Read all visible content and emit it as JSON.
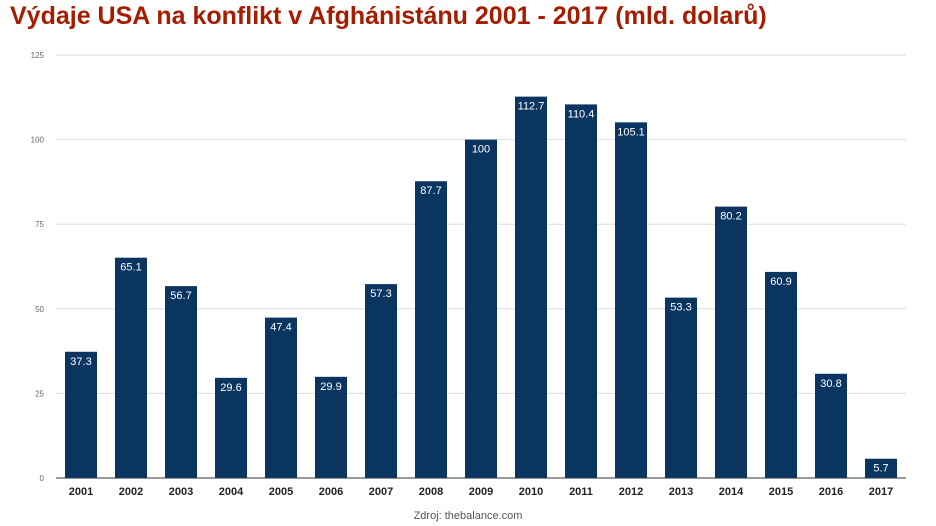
{
  "chart_data": {
    "type": "bar",
    "title": "Výdaje USA na konflikt v Afghánistánu 2001 - 2017 (mld. dolarů)",
    "source": "Zdroj: thebalance.com",
    "categories": [
      "2001",
      "2002",
      "2003",
      "2004",
      "2005",
      "2006",
      "2007",
      "2008",
      "2009",
      "2010",
      "2011",
      "2012",
      "2013",
      "2014",
      "2015",
      "2016",
      "2017"
    ],
    "values": [
      37.3,
      65.1,
      56.7,
      29.6,
      47.4,
      29.9,
      57.3,
      87.7,
      100,
      112.7,
      110.4,
      105.1,
      53.3,
      80.2,
      60.9,
      30.8,
      5.7
    ],
    "data_labels": [
      "37.3",
      "65.1",
      "56.7",
      "29.6",
      "47.4",
      "29.9",
      "57.3",
      "87.7",
      "100",
      "112.7",
      "110.4",
      "105.1",
      "53.3",
      "80.2",
      "60.9",
      "30.8",
      "5.7"
    ],
    "yticks": [
      0,
      25,
      50,
      75,
      100,
      125
    ],
    "ytick_labels": [
      "0",
      "25",
      "50",
      "75",
      "100",
      "125"
    ],
    "ylim": [
      0,
      125
    ],
    "grid": true,
    "bar_color": "#0b3561",
    "title_color": "#a61c00"
  }
}
